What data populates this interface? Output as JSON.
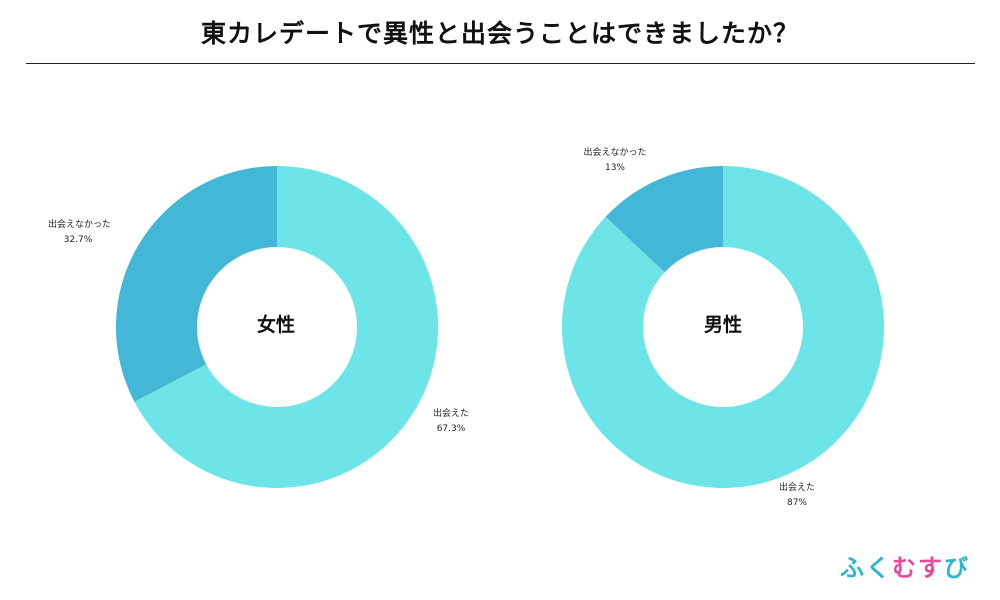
{
  "title": "東カレデートで異性と出会うことはできましたか？",
  "logo": {
    "text": "ふくむすび",
    "colors": [
      "#29b6d1",
      "#29b6d1",
      "#e64b9a",
      "#e64b9a",
      "#29b6d1"
    ]
  },
  "colors": {
    "met": "#6de4e8",
    "not_met": "#43b8d6"
  },
  "chart_data": [
    {
      "type": "pie",
      "center_label": "女性",
      "slices": [
        {
          "label": "出会えた",
          "percent_text": "67.3%",
          "value": 67.3
        },
        {
          "label": "出会えなかった",
          "percent_text": "32.7%",
          "value": 32.7
        }
      ]
    },
    {
      "type": "pie",
      "center_label": "男性",
      "slices": [
        {
          "label": "出会えた",
          "percent_text": "87%",
          "value": 87
        },
        {
          "label": "出会えなかった",
          "percent_text": "13%",
          "value": 13
        }
      ]
    }
  ]
}
